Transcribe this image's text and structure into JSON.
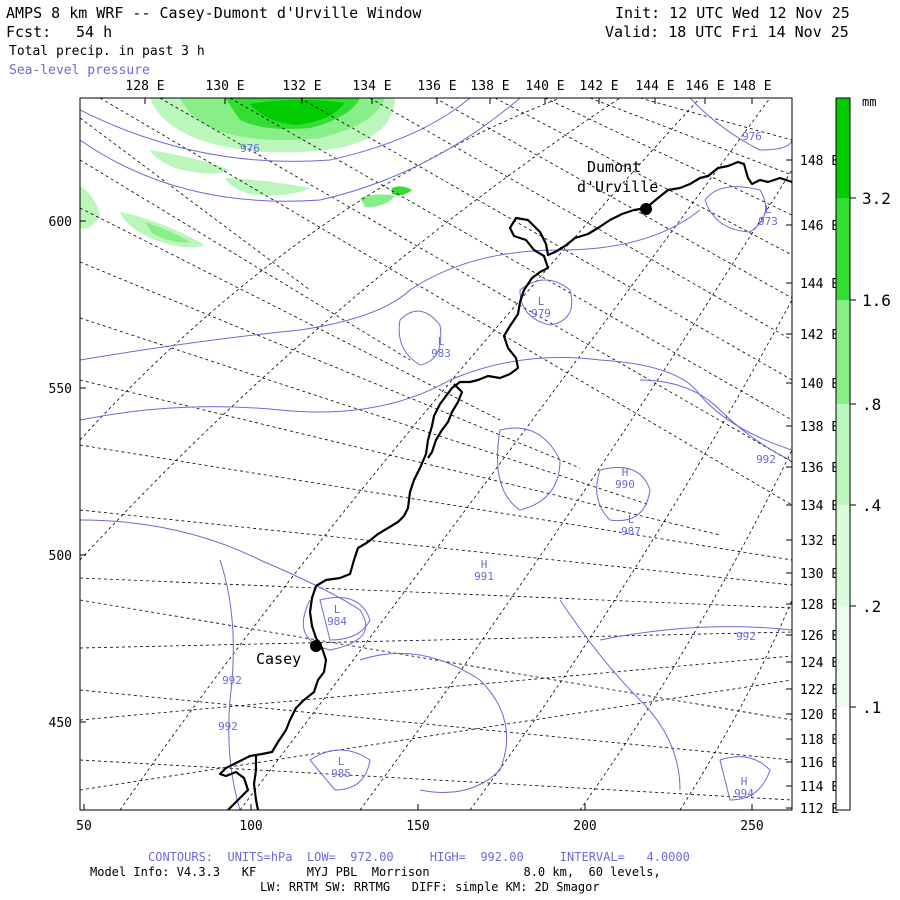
{
  "header": {
    "title": "AMPS 8 km WRF -- Casey-Dumont d'Urville Window",
    "init": "Init: 12 UTC Wed 12 Nov 25",
    "fcst_label": "Fcst:",
    "fcst_value": "54 h",
    "valid": "Valid: 18 UTC Fri 14 Nov 25",
    "field1": "Total precip. in past 3 h",
    "field2": "Sea-level pressure"
  },
  "top_lon_labels": [
    "128 E",
    "130 E",
    "132 E",
    "134 E",
    "136 E",
    "138 E",
    "140 E",
    "142 E",
    "144 E",
    "146 E",
    "148 E"
  ],
  "right_lon_labels": [
    "148 E",
    "146 E",
    "144 E",
    "142 E",
    "140 E",
    "138 E",
    "136 E",
    "134 E",
    "132 E",
    "130 E",
    "128 E",
    "126 E",
    "124 E",
    "122 E",
    "120 E",
    "118 E",
    "116 E",
    "114 E",
    "112 E"
  ],
  "x_axis_ticks": [
    "50",
    "100",
    "150",
    "200",
    "250"
  ],
  "y_axis_ticks": [
    "600",
    "550",
    "500",
    "450"
  ],
  "stations": [
    {
      "name_line1": "Dumont",
      "name_line2": "d'Urville"
    },
    {
      "name_line1": "Casey",
      "name_line2": ""
    }
  ],
  "pressure_labels": [
    {
      "mark": "",
      "value": "976"
    },
    {
      "mark": "",
      "value": "976"
    },
    {
      "mark": "L",
      "value": "973"
    },
    {
      "mark": "L",
      "value": "979"
    },
    {
      "mark": "L",
      "value": "983"
    },
    {
      "mark": "H",
      "value": "990"
    },
    {
      "mark": "L",
      "value": "987"
    },
    {
      "mark": "",
      "value": "992"
    },
    {
      "mark": "H",
      "value": "991"
    },
    {
      "mark": "L",
      "value": "984"
    },
    {
      "mark": "",
      "value": "992"
    },
    {
      "mark": "",
      "value": "992"
    },
    {
      "mark": "",
      "value": "992"
    },
    {
      "mark": "L",
      "value": "985"
    },
    {
      "mark": "H",
      "value": "994"
    }
  ],
  "colorbar": {
    "unit": "mm",
    "labels": [
      "3.2",
      "1.6",
      ".8",
      ".4",
      ".2",
      ".1"
    ],
    "colors": [
      "#00cc00",
      "#33dd33",
      "#88ee88",
      "#bbf6bb",
      "#ddfadd",
      "#eefcee"
    ]
  },
  "footer": {
    "contours": "CONTOURS:  UNITS=hPa  LOW=  972.00     HIGH=  992.00     INTERVAL=   4.0000",
    "model_info": "Model Info: V4.3.3   KF       MYJ PBL  Morrison             8.0 km,  60 levels,",
    "physics": "LW: RRTM SW: RRTMG   DIFF: simple KM: 2D Smagor"
  }
}
